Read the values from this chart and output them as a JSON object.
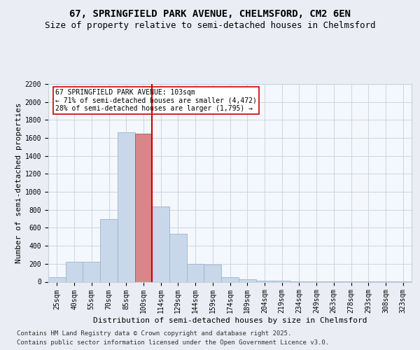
{
  "title1": "67, SPRINGFIELD PARK AVENUE, CHELMSFORD, CM2 6EN",
  "title2": "Size of property relative to semi-detached houses in Chelmsford",
  "xlabel": "Distribution of semi-detached houses by size in Chelmsford",
  "ylabel": "Number of semi-detached properties",
  "categories": [
    "25sqm",
    "40sqm",
    "55sqm",
    "70sqm",
    "85sqm",
    "100sqm",
    "114sqm",
    "129sqm",
    "144sqm",
    "159sqm",
    "174sqm",
    "189sqm",
    "204sqm",
    "219sqm",
    "234sqm",
    "249sqm",
    "263sqm",
    "278sqm",
    "293sqm",
    "308sqm",
    "323sqm"
  ],
  "values": [
    50,
    220,
    220,
    700,
    1660,
    1650,
    840,
    530,
    200,
    190,
    50,
    30,
    10,
    10,
    5,
    3,
    2,
    2,
    1,
    1,
    1
  ],
  "bar_color": "#c8d8ea",
  "bar_edge_color": "#9ab4cc",
  "highlight_bar_index": 5,
  "highlight_color": "#d9868a",
  "highlight_edge_color": "#b05055",
  "vline_color": "#cc0000",
  "annotation_text": "67 SPRINGFIELD PARK AVENUE: 103sqm\n← 71% of semi-detached houses are smaller (4,472)\n28% of semi-detached houses are larger (1,795) →",
  "annotation_box_color": "#ffffff",
  "annotation_box_edge": "#cc0000",
  "ylim": [
    0,
    2200
  ],
  "yticks": [
    0,
    200,
    400,
    600,
    800,
    1000,
    1200,
    1400,
    1600,
    1800,
    2000,
    2200
  ],
  "footer1": "Contains HM Land Registry data © Crown copyright and database right 2025.",
  "footer2": "Contains public sector information licensed under the Open Government Licence v3.0.",
  "bg_color": "#eaeef4",
  "plot_bg_color": "#f4f7fb",
  "grid_color": "#c8d0dc",
  "title1_fontsize": 10,
  "title2_fontsize": 9,
  "tick_fontsize": 7,
  "label_fontsize": 8,
  "footer_fontsize": 6.5
}
